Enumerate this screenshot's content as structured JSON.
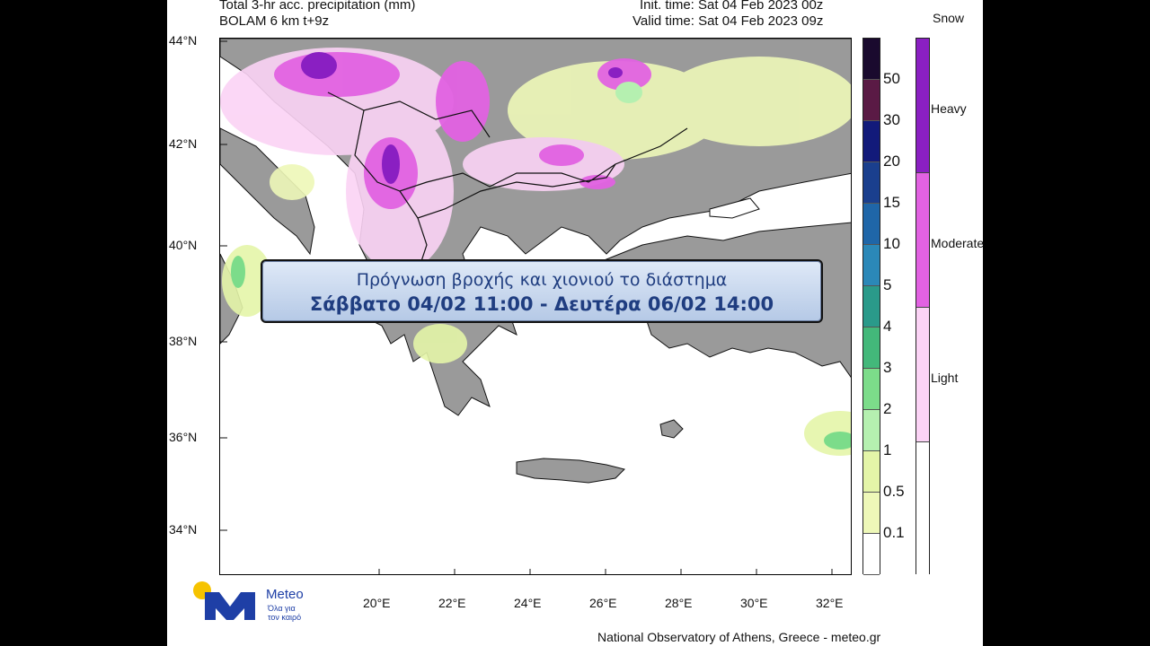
{
  "header": {
    "title_line1": "Total 3-hr acc. precipitation (mm)",
    "title_line2": "BOLAM 6 km t+9z",
    "init_time": "Init. time: Sat 04 Feb 2023 00z",
    "valid_time": "Valid time: Sat 04 Feb 2023 09z"
  },
  "map": {
    "lat_labels": [
      "44°N",
      "42°N",
      "40°N",
      "38°N",
      "36°N",
      "34°N"
    ],
    "lon_labels": [
      "20°E",
      "22°E",
      "24°E",
      "26°E",
      "28°E",
      "30°E",
      "32°E"
    ]
  },
  "colorbar": {
    "labels": [
      "50",
      "30",
      "20",
      "15",
      "10",
      "5",
      "4",
      "3",
      "2",
      "1",
      "0.5",
      "0.1"
    ],
    "colors": [
      "#1a0a2e",
      "#5a1a45",
      "#121a7a",
      "#1a3f8e",
      "#1f66a8",
      "#2b88b8",
      "#2a9a8a",
      "#43b87a",
      "#7cdc8a",
      "#b5f0b0",
      "#e4f5a8",
      "#eef8b8",
      "#ffffff"
    ]
  },
  "snowbar": {
    "title": "Snow",
    "levels": [
      "Heavy",
      "Moderate",
      "Light"
    ],
    "colors": [
      "#8a1fc2",
      "#e262e2",
      "#fbd3f5",
      "#ffffff"
    ]
  },
  "overlay": {
    "line1": "Πρόγνωση βροχής και χιονιού το διάστημα",
    "line2": "Σάββατο 04/02 11:00 - Δευτέρα 06/02 14:00"
  },
  "logo": {
    "name": "Meteo",
    "tagline_1": "Όλα για",
    "tagline_2": "τον καιρό"
  },
  "footer": "National Observatory of Athens, Greece - meteo.gr"
}
